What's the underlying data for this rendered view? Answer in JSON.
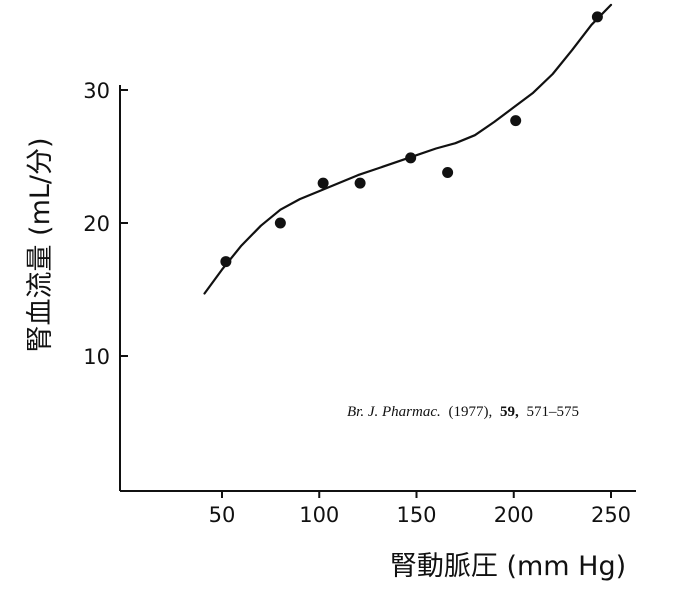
{
  "chart_data": {
    "type": "scatter",
    "title": "",
    "xlabel": "腎動脈圧 (mm Hg)",
    "ylabel": "腎血流量 (mL/分)",
    "x_ticks": [
      50,
      100,
      150,
      200,
      250
    ],
    "y_ticks": [
      10,
      20,
      30
    ],
    "xlim": [
      0,
      260
    ],
    "ylim": [
      0,
      34
    ],
    "grid": false,
    "legend": "none",
    "series": [
      {
        "type": "scatter",
        "x": [
          52,
          80,
          102,
          121,
          147,
          166,
          201,
          243
        ],
        "y": [
          17.1,
          20.0,
          23.0,
          23.0,
          24.9,
          23.8,
          27.7,
          35.5
        ]
      },
      {
        "type": "line",
        "x": [
          41,
          50,
          60,
          70,
          80,
          90,
          100,
          110,
          120,
          130,
          140,
          150,
          160,
          170,
          180,
          190,
          200,
          210,
          220,
          230,
          240,
          250
        ],
        "y": [
          14.7,
          16.5,
          18.3,
          19.8,
          21.0,
          21.8,
          22.4,
          23.0,
          23.6,
          24.1,
          24.6,
          25.1,
          25.6,
          26.0,
          26.6,
          27.6,
          28.7,
          29.8,
          31.2,
          33.0,
          34.9,
          36.4
        ]
      }
    ],
    "annotation": {
      "journal": "Br. J. Pharmac.",
      "year": "(1977),",
      "volume": "59,",
      "pages": "571–575"
    },
    "colors": {
      "ink": "#111111"
    }
  }
}
